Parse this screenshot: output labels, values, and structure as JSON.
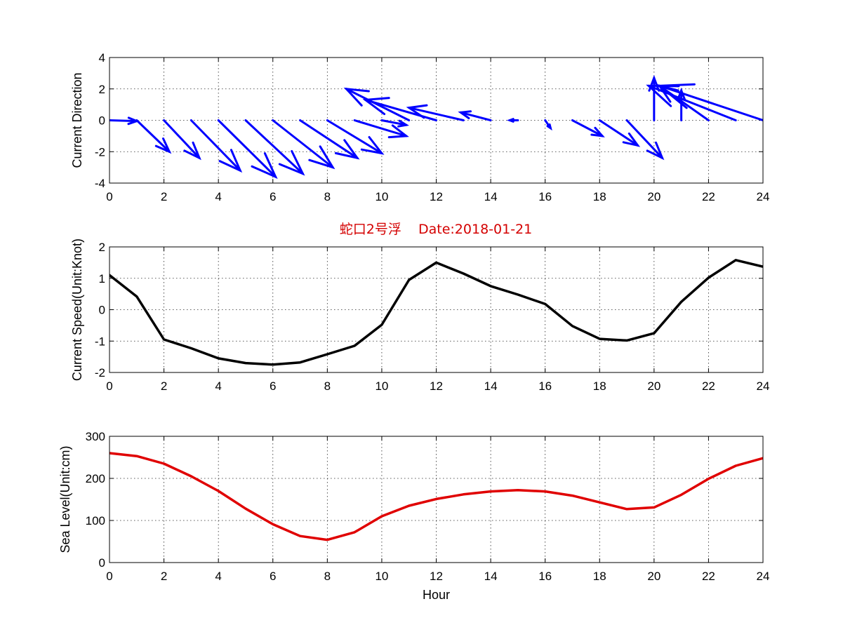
{
  "figure_title": "蛇口2号浮    Date:2018-01-21",
  "colors": {
    "title": "#d40000",
    "quiver": "#0000ff",
    "speed": "#000000",
    "sea_level": "#e00000"
  },
  "chart_data": [
    {
      "type": "quiver",
      "ylabel": "Current Direction",
      "xlabel": "",
      "xlim": [
        0,
        24
      ],
      "ylim": [
        -4,
        4
      ],
      "xticks": [
        0,
        2,
        4,
        6,
        8,
        10,
        12,
        14,
        16,
        18,
        20,
        22,
        24
      ],
      "yticks": [
        -4,
        -2,
        0,
        2,
        4
      ],
      "grid": true,
      "color": "#0000ff",
      "x": [
        0,
        1,
        2,
        3,
        4,
        5,
        6,
        7,
        8,
        9,
        10,
        11,
        12,
        13,
        14,
        15,
        16,
        17,
        18,
        19,
        20,
        21,
        22,
        23,
        24
      ],
      "u": [
        1.0,
        1.2,
        1.3,
        1.8,
        2.1,
        2.1,
        2.2,
        2.1,
        2.0,
        1.9,
        0.9,
        -2.3,
        -2.6,
        -2.0,
        -1.1,
        -0.3,
        0.2,
        1.1,
        1.4,
        1.3,
        0.0,
        0.0,
        -1.8,
        -3.2,
        -3.8
      ],
      "v": [
        -0.05,
        -2.0,
        -2.4,
        -3.2,
        -3.6,
        -3.4,
        -3.0,
        -2.4,
        -2.1,
        -1.0,
        -0.3,
        2.0,
        1.3,
        0.8,
        0.5,
        0.0,
        -0.5,
        -1.0,
        -1.6,
        -2.4,
        2.7,
        1.9,
        2.2,
        2.2,
        2.2
      ]
    },
    {
      "type": "line",
      "title": "蛇口2号浮    Date:2018-01-21",
      "ylabel": "Current Speed(Unit:Knot)",
      "xlabel": "",
      "xlim": [
        0,
        24
      ],
      "ylim": [
        -2,
        2
      ],
      "xticks": [
        0,
        2,
        4,
        6,
        8,
        10,
        12,
        14,
        16,
        18,
        20,
        22,
        24
      ],
      "yticks": [
        -2,
        -1,
        0,
        1,
        2
      ],
      "grid": true,
      "color": "#000000",
      "x": [
        0,
        1,
        2,
        3,
        4,
        5,
        6,
        7,
        8,
        9,
        10,
        11,
        12,
        13,
        14,
        15,
        16,
        17,
        18,
        19,
        20,
        21,
        22,
        23,
        24
      ],
      "y": [
        1.1,
        0.42,
        -0.95,
        -1.23,
        -1.55,
        -1.7,
        -1.75,
        -1.68,
        -1.42,
        -1.15,
        -0.48,
        0.95,
        1.5,
        1.15,
        0.75,
        0.48,
        0.18,
        -0.52,
        -0.93,
        -0.98,
        -0.75,
        0.25,
        1.02,
        1.58,
        1.37
      ]
    },
    {
      "type": "line",
      "ylabel": "Sea Level(Unit:cm)",
      "xlabel": "Hour",
      "xlim": [
        0,
        24
      ],
      "ylim": [
        0,
        300
      ],
      "xticks": [
        0,
        2,
        4,
        6,
        8,
        10,
        12,
        14,
        16,
        18,
        20,
        22,
        24
      ],
      "yticks": [
        0,
        100,
        200,
        300
      ],
      "grid": true,
      "color": "#e00000",
      "x": [
        0,
        1,
        2,
        3,
        4,
        5,
        6,
        7,
        8,
        9,
        10,
        11,
        12,
        13,
        14,
        15,
        16,
        17,
        18,
        19,
        20,
        21,
        22,
        23,
        24
      ],
      "y": [
        260,
        253,
        235,
        205,
        170,
        128,
        91,
        63,
        54,
        72,
        110,
        135,
        151,
        162,
        169,
        172,
        169,
        159,
        143,
        127,
        131,
        161,
        199,
        230,
        248
      ]
    }
  ]
}
